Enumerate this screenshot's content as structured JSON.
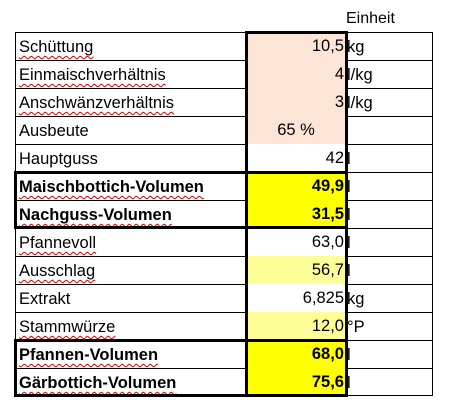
{
  "header": {
    "unit_col": "Einheit"
  },
  "colors": {
    "input_fill": "#fce4d6",
    "result_fill": "#ffff00",
    "highlight_fill": "#ffff99",
    "spellcheck_underline": "#d40000"
  },
  "rows": [
    {
      "label": "Schüttung",
      "value": "10,5",
      "unit": "kg"
    },
    {
      "label": "Einmaischverhältnis",
      "value": "4",
      "unit": "l/kg"
    },
    {
      "label": "Anschwänzverhältnis",
      "value": "3",
      "unit": "l/kg"
    },
    {
      "label": "Ausbeute",
      "value": "65 %",
      "unit": ""
    },
    {
      "label": "Hauptguss",
      "value": "42",
      "unit": "l"
    },
    {
      "label": "Maischbottich-Volumen",
      "value": "49,9",
      "unit": "l"
    },
    {
      "label": "Nachguss-Volumen",
      "value": "31,5",
      "unit": "l"
    },
    {
      "label": "Pfannevoll",
      "value": "63,0",
      "unit": "l"
    },
    {
      "label": "Ausschlag",
      "value": "56,7",
      "unit": "l"
    },
    {
      "label": "Extrakt",
      "value": "6,825",
      "unit": "kg"
    },
    {
      "label": "Stammwürze",
      "value": "12,0",
      "unit": "°P"
    },
    {
      "label": "Pfannen-Volumen",
      "value": "68,0",
      "unit": "l"
    },
    {
      "label": "Gärbottich-Volumen",
      "value": "75,6",
      "unit": "l"
    }
  ]
}
